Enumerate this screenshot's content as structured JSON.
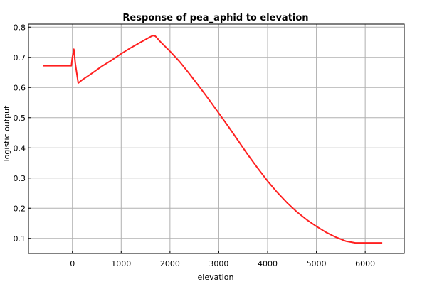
{
  "chart_data": {
    "type": "line",
    "title": "Response of pea_aphid to elevation",
    "xlabel": "elevation",
    "ylabel": "logistic output",
    "xlim": [
      -900,
      6800
    ],
    "ylim": [
      0.05,
      0.81
    ],
    "xticks": [
      0,
      1000,
      2000,
      3000,
      4000,
      5000,
      6000
    ],
    "yticks": [
      0.1,
      0.2,
      0.3,
      0.4,
      0.5,
      0.6,
      0.7,
      0.8
    ],
    "xtick_labels": [
      "0",
      "1000",
      "2000",
      "3000",
      "4000",
      "5000",
      "6000"
    ],
    "ytick_labels": [
      "0.1",
      "0.2",
      "0.3",
      "0.4",
      "0.5",
      "0.6",
      "0.7",
      "0.8"
    ],
    "grid": true,
    "series": [
      {
        "color": "#ff2020",
        "x": [
          -600,
          -20,
          0,
          30,
          60,
          120,
          200,
          400,
          600,
          800,
          1000,
          1200,
          1400,
          1600,
          1650,
          1700,
          1800,
          2000,
          2200,
          2400,
          2600,
          2800,
          3000,
          3200,
          3400,
          3600,
          3800,
          4000,
          4200,
          4400,
          4600,
          4800,
          5000,
          5200,
          5400,
          5600,
          5800,
          6000,
          6200,
          6350
        ],
        "y": [
          0.672,
          0.672,
          0.7,
          0.727,
          0.68,
          0.615,
          0.625,
          0.647,
          0.67,
          0.69,
          0.712,
          0.732,
          0.75,
          0.768,
          0.772,
          0.77,
          0.752,
          0.72,
          0.685,
          0.645,
          0.603,
          0.56,
          0.515,
          0.47,
          0.423,
          0.376,
          0.332,
          0.29,
          0.252,
          0.218,
          0.188,
          0.162,
          0.14,
          0.12,
          0.104,
          0.091,
          0.085,
          0.085,
          0.085,
          0.085
        ]
      }
    ]
  }
}
